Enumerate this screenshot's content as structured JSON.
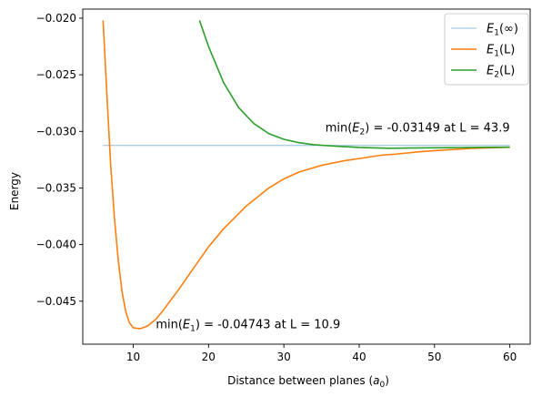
{
  "chart_data": {
    "type": "line",
    "xlabel_main": "Distance between planes (",
    "xlabel_sym": "a",
    "xlabel_sub": "0",
    "xlabel_close": ")",
    "ylabel": "Energy",
    "xlim": [
      3.3,
      62.7
    ],
    "ylim": [
      -0.0488,
      -0.0192
    ],
    "x_ticks": [
      10,
      20,
      30,
      40,
      50,
      60
    ],
    "x_tick_labels": [
      "10",
      "20",
      "30",
      "40",
      "50",
      "60"
    ],
    "y_ticks": [
      -0.045,
      -0.04,
      -0.035,
      -0.03,
      -0.025,
      -0.02
    ],
    "y_tick_labels": [
      "−0.045",
      "−0.040",
      "−0.035",
      "−0.030",
      "−0.025",
      "−0.020"
    ],
    "grid": false,
    "legend_position": "top-right",
    "series": [
      {
        "name": "E1(∞)",
        "name_sym": "E",
        "name_sub": "1",
        "name_rest": "(∞)",
        "color": "#1f77b4",
        "opacity": 0.5,
        "style": "thin",
        "x": [
          6,
          60
        ],
        "y": [
          -0.03125,
          -0.03125
        ]
      },
      {
        "name": "E1(L)",
        "name_sym": "E",
        "name_sub": "1",
        "name_rest": "(L)",
        "color": "#ff7f0e",
        "opacity": 1,
        "style": "normal",
        "x": [
          6,
          6.5,
          7,
          7.5,
          8,
          8.5,
          9,
          9.5,
          10,
          10.5,
          10.9,
          11.5,
          12,
          13,
          14,
          15,
          16,
          18,
          20,
          22,
          25,
          28,
          30,
          32,
          35,
          38,
          40,
          43,
          45,
          48,
          50,
          55,
          60
        ],
        "y": [
          -0.0202,
          -0.0267,
          -0.0329,
          -0.0376,
          -0.0413,
          -0.0441,
          -0.0459,
          -0.0469,
          -0.04735,
          -0.0474,
          -0.04743,
          -0.0473,
          -0.04715,
          -0.0466,
          -0.0458,
          -0.0449,
          -0.044,
          -0.0421,
          -0.0402,
          -0.0386,
          -0.0366,
          -0.035,
          -0.0342,
          -0.0336,
          -0.033,
          -0.0326,
          -0.0324,
          -0.0321,
          -0.032,
          -0.0318,
          -0.0317,
          -0.0315,
          -0.0314
        ]
      },
      {
        "name": "E2(L)",
        "name_sym": "E",
        "name_sub": "2",
        "name_rest": "(L)",
        "color": "#2ca02c",
        "opacity": 1,
        "style": "normal",
        "x": [
          18.8,
          20,
          22,
          24,
          26,
          28,
          30,
          32,
          34,
          36,
          38,
          40,
          43.9,
          48,
          52,
          56,
          60
        ],
        "y": [
          -0.0202,
          -0.0225,
          -0.0257,
          -0.0279,
          -0.0293,
          -0.0302,
          -0.0307,
          -0.031,
          -0.03118,
          -0.03127,
          -0.03135,
          -0.03142,
          -0.03149,
          -0.03146,
          -0.03144,
          -0.03141,
          -0.0314
        ]
      }
    ],
    "annotations": [
      {
        "pre": "min(",
        "sym": "E",
        "sub": "1",
        "post": ") = -0.04743 at L = 10.9",
        "x": 13,
        "y": -0.0474
      },
      {
        "pre": "min(",
        "sym": "E",
        "sub": "2",
        "post": ") = -0.03149 at L = 43.9",
        "x": 35.5,
        "y": -0.03
      }
    ]
  }
}
